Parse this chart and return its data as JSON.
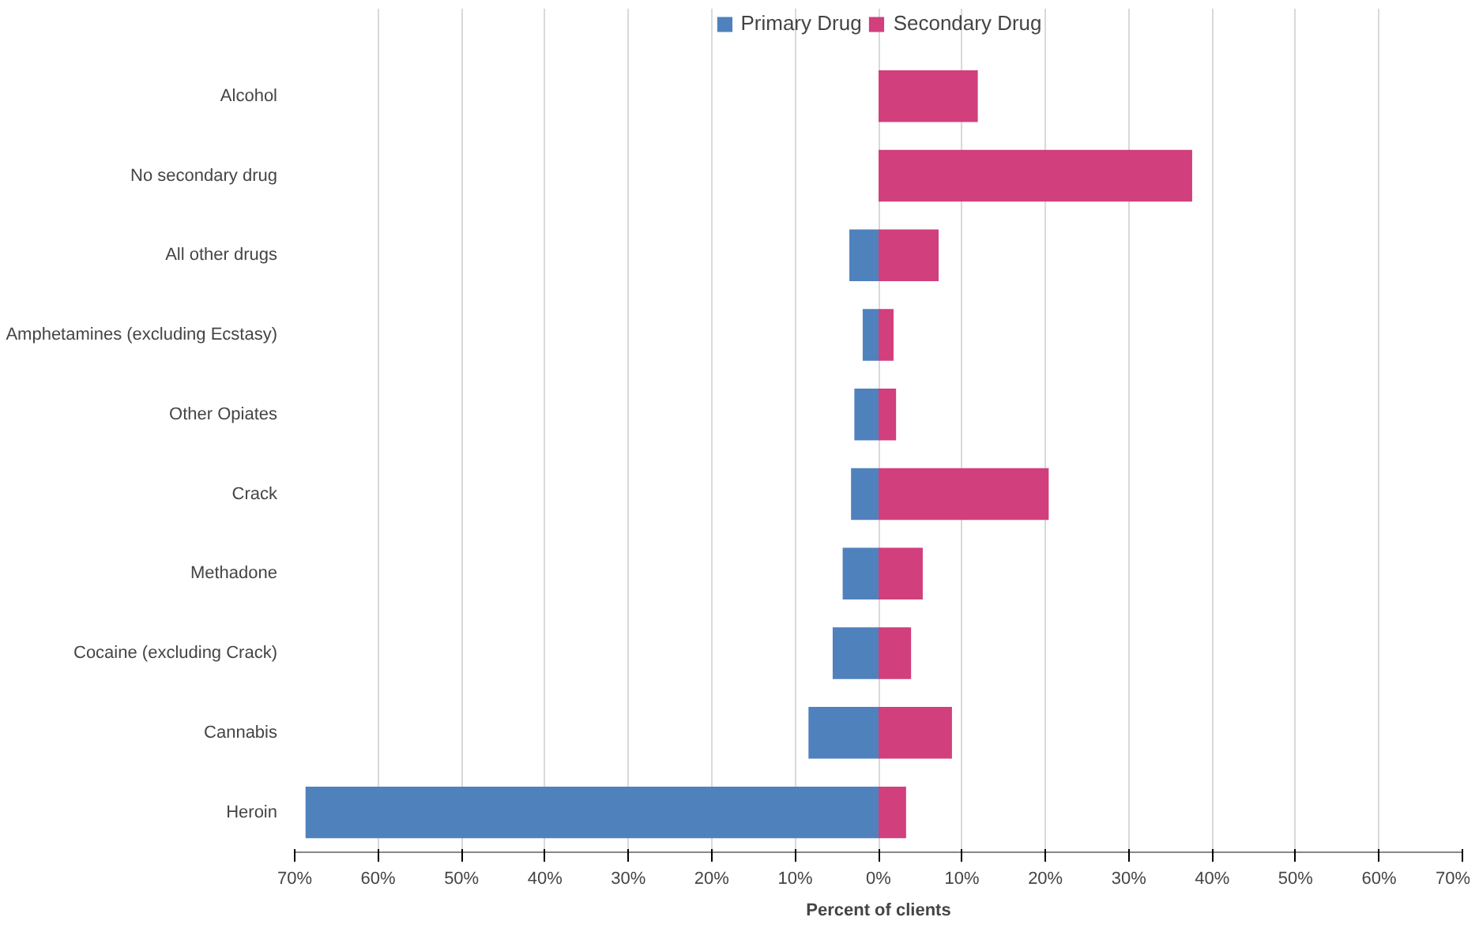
{
  "chart_data": {
    "type": "bar",
    "orientation": "horizontal",
    "xlabel": "Percent of clients",
    "categories": [
      "Alcohol",
      "No secondary drug",
      "All other drugs",
      "Amphetamines (excluding Ecstasy)",
      "Other Opiates",
      "Crack",
      "Methadone",
      "Cocaine (excluding Crack)",
      "Cannabis",
      "Heroin"
    ],
    "series": [
      {
        "name": "Primary Drug",
        "color": "#4f81bd",
        "values": [
          null,
          null,
          -3.5,
          -1.9,
          -2.9,
          -3.3,
          -4.3,
          -5.5,
          -8.4,
          -68.7
        ]
      },
      {
        "name": "Secondary Drug",
        "color": "#d13f7c",
        "values": [
          11.9,
          37.6,
          7.2,
          1.8,
          2.1,
          20.4,
          5.3,
          3.9,
          8.8,
          3.3
        ]
      }
    ],
    "xlim": [
      -70,
      70
    ],
    "xticks": [
      {
        "value": -70,
        "label": "70%"
      },
      {
        "value": -60,
        "label": "60%"
      },
      {
        "value": -50,
        "label": "50%"
      },
      {
        "value": -40,
        "label": "40%"
      },
      {
        "value": -30,
        "label": "30%"
      },
      {
        "value": -20,
        "label": "20%"
      },
      {
        "value": -10,
        "label": "10%"
      },
      {
        "value": 0,
        "label": "0%"
      },
      {
        "value": 10,
        "label": "10%"
      },
      {
        "value": 20,
        "label": "20%"
      },
      {
        "value": 30,
        "label": "30%"
      },
      {
        "value": 40,
        "label": "40%"
      },
      {
        "value": 50,
        "label": "50%"
      },
      {
        "value": 60,
        "label": "60%"
      },
      {
        "value": 70,
        "label": "70%"
      }
    ],
    "stacked": true,
    "grid": "x",
    "legend": "top"
  }
}
